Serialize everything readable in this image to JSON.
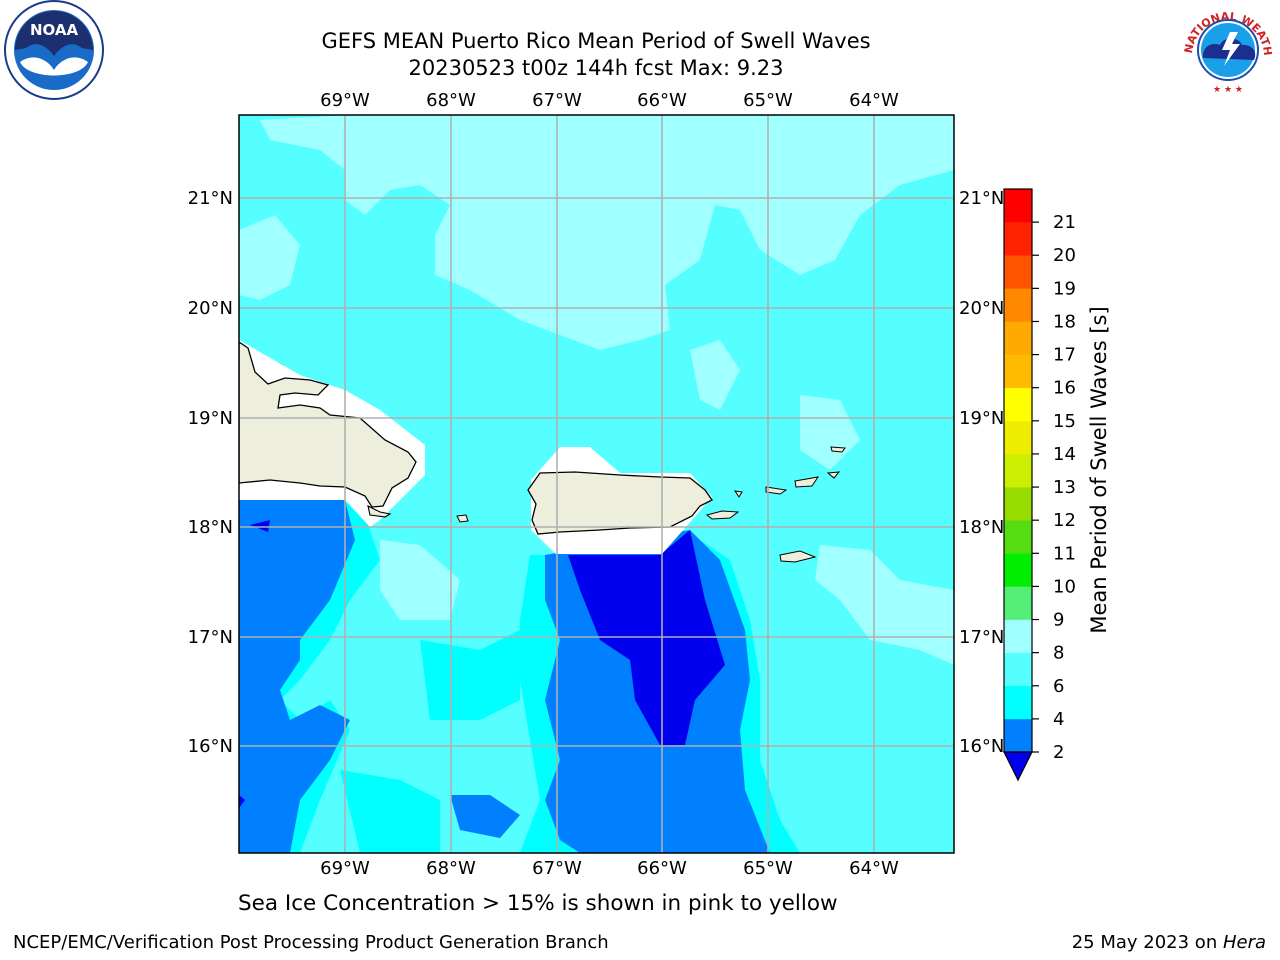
{
  "title": {
    "line1": "GEFS MEAN Puerto Rico Mean Period of Swell Waves",
    "line2": "20230523 t00z 144h fcst   Max: 9.23"
  },
  "map": {
    "lon_labels": [
      "69°W",
      "68°W",
      "67°W",
      "66°W",
      "65°W",
      "64°W"
    ],
    "lat_labels": [
      "21°N",
      "20°N",
      "19°N",
      "18°N",
      "17°N",
      "16°N"
    ],
    "lon_range": [
      -70.0,
      -63.25
    ],
    "lat_range": [
      15.0,
      21.75
    ],
    "grid": true,
    "colors": {
      "band_2_4": "#0080ff",
      "band_4_6": "#00ffff",
      "band_6_8": "#55ffff",
      "band_8_9": "#a0ffff",
      "below_2": "#0000ee",
      "land": "#eeeedd",
      "nodata": "#ffffff",
      "green_spot": "#55ee55"
    }
  },
  "colorbar": {
    "label": "Mean Period of Swell Waves [s]",
    "ticks": [
      "2",
      "4",
      "6",
      "8",
      "9",
      "10",
      "11",
      "12",
      "13",
      "14",
      "15",
      "16",
      "17",
      "18",
      "19",
      "20",
      "21"
    ],
    "colors": [
      "#0080ff",
      "#00ffff",
      "#55ffff",
      "#a0ffff",
      "#55ee77",
      "#00ee00",
      "#55dd11",
      "#99dd00",
      "#ccee00",
      "#eeee00",
      "#ffff00",
      "#ffbb00",
      "#ffaa00",
      "#ff8800",
      "#ff5500",
      "#ff2200",
      "#ff0000"
    ],
    "extend_color": "#0000ee"
  },
  "caption": "Sea Ice Concentration > 15% is shown in pink to yellow",
  "footer": {
    "left": "NCEP/EMC/Verification Post Processing Product Generation Branch",
    "right_date": "25 May 2023 on ",
    "right_host": "Hera"
  },
  "logos": {
    "noaa_text": "NOAA",
    "nws_text": "NATIONAL WEATHER SERVICE"
  }
}
